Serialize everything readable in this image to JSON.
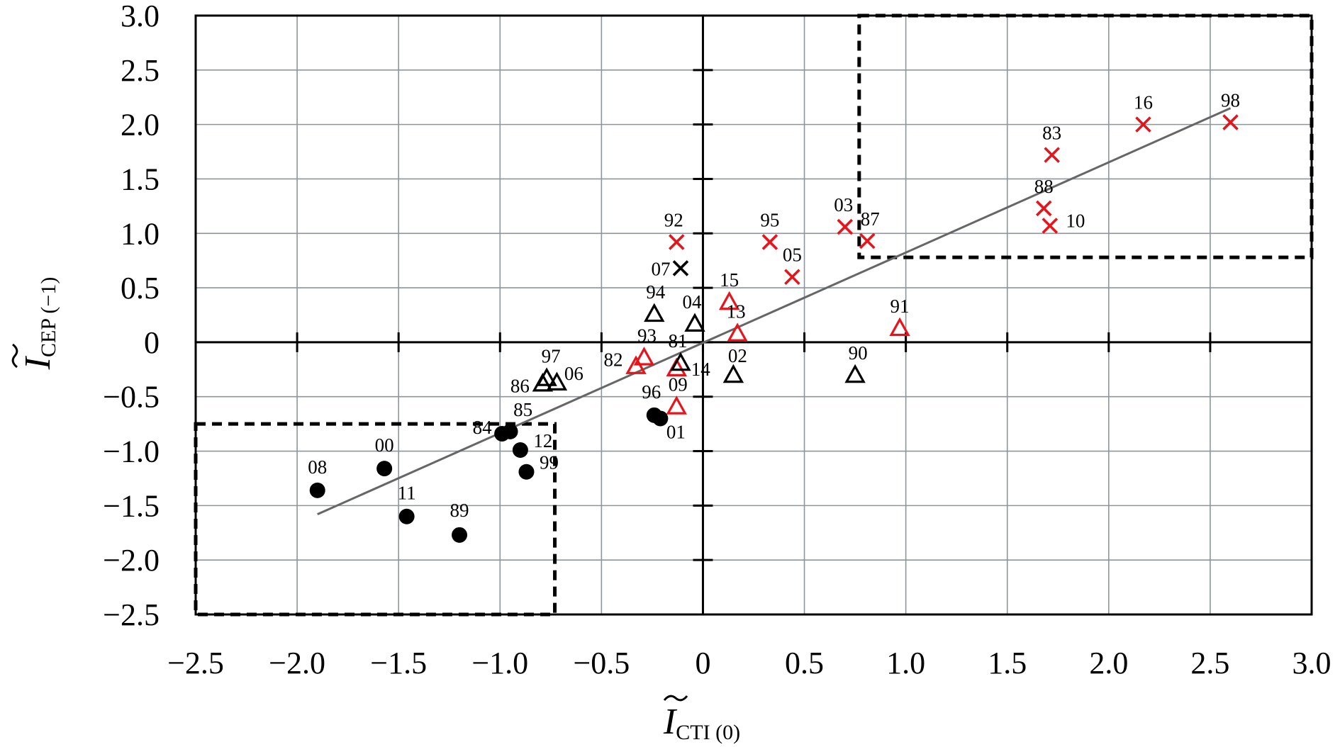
{
  "chart_data": {
    "type": "scatter",
    "xlabel": {
      "symbol": "I",
      "subscript": "CTI (0)"
    },
    "ylabel": {
      "symbol": "I",
      "subscript": "CEP (−1)"
    },
    "xlim": [
      -2.5,
      3.0
    ],
    "ylim": [
      -2.5,
      3.0
    ],
    "xticks": [
      "−2.5",
      "−2.0",
      "−1.5",
      "−1.0",
      "−0.5",
      "0",
      "0.5",
      "1.0",
      "1.5",
      "2.0",
      "2.5",
      "3.0"
    ],
    "yticks": [
      "3.0",
      "2.5",
      "2.0",
      "1.5",
      "1.0",
      "0.5",
      "0",
      "−0.5",
      "−1.0",
      "−1.5",
      "−2.0",
      "−2.5"
    ],
    "grid": true,
    "colors": {
      "red": "#e8141b",
      "black": "#000000",
      "grid": "#8c969c",
      "trend": "#666666"
    },
    "trendline": {
      "x": [
        -1.9,
        2.6
      ],
      "y": [
        -1.58,
        2.15
      ]
    },
    "regions": [
      {
        "x": [
          0.77,
          3.0
        ],
        "y": [
          0.78,
          3.0
        ],
        "style": "dashed"
      },
      {
        "x": [
          -2.5,
          -0.73
        ],
        "y": [
          -2.5,
          -0.75
        ],
        "style": "dashed"
      }
    ],
    "points": [
      {
        "label": "98",
        "x": 2.6,
        "y": 2.02,
        "marker": "x",
        "color": "red"
      },
      {
        "label": "16",
        "x": 2.17,
        "y": 2.0,
        "marker": "x",
        "color": "red"
      },
      {
        "label": "83",
        "x": 1.72,
        "y": 1.72,
        "marker": "x",
        "color": "red"
      },
      {
        "label": "88",
        "x": 1.68,
        "y": 1.23,
        "marker": "x",
        "color": "red"
      },
      {
        "label": "10",
        "x": 1.71,
        "y": 1.07,
        "marker": "x",
        "color": "red"
      },
      {
        "label": "03",
        "x": 0.7,
        "y": 1.06,
        "marker": "x",
        "color": "red"
      },
      {
        "label": "87",
        "x": 0.81,
        "y": 0.93,
        "marker": "x",
        "color": "red"
      },
      {
        "label": "95",
        "x": 0.33,
        "y": 0.92,
        "marker": "x",
        "color": "red"
      },
      {
        "label": "05",
        "x": 0.44,
        "y": 0.6,
        "marker": "x",
        "color": "red"
      },
      {
        "label": "92",
        "x": -0.13,
        "y": 0.92,
        "marker": "x",
        "color": "red"
      },
      {
        "label": "07",
        "x": -0.11,
        "y": 0.68,
        "marker": "x",
        "color": "black"
      },
      {
        "label": "15",
        "x": 0.13,
        "y": 0.37,
        "marker": "triangle",
        "color": "red"
      },
      {
        "label": "13",
        "x": 0.17,
        "y": 0.08,
        "marker": "triangle",
        "color": "red"
      },
      {
        "label": "91",
        "x": 0.97,
        "y": 0.13,
        "marker": "triangle",
        "color": "red"
      },
      {
        "label": "93",
        "x": -0.29,
        "y": -0.14,
        "marker": "triangle",
        "color": "red"
      },
      {
        "label": "82",
        "x": -0.33,
        "y": -0.22,
        "marker": "triangle",
        "color": "red"
      },
      {
        "label": "14",
        "x": -0.13,
        "y": -0.24,
        "marker": "triangle",
        "color": "red"
      },
      {
        "label": "09",
        "x": -0.13,
        "y": -0.59,
        "marker": "triangle",
        "color": "red"
      },
      {
        "label": "94",
        "x": -0.24,
        "y": 0.26,
        "marker": "triangle",
        "color": "black"
      },
      {
        "label": "04",
        "x": -0.04,
        "y": 0.17,
        "marker": "triangle",
        "color": "black"
      },
      {
        "label": "81",
        "x": -0.11,
        "y": -0.19,
        "marker": "triangle",
        "color": "black"
      },
      {
        "label": "02",
        "x": 0.15,
        "y": -0.3,
        "marker": "triangle",
        "color": "black"
      },
      {
        "label": "90",
        "x": 0.75,
        "y": -0.3,
        "marker": "triangle",
        "color": "black"
      },
      {
        "label": "97",
        "x": -0.77,
        "y": -0.33,
        "marker": "triangle",
        "color": "black"
      },
      {
        "label": "86",
        "x": -0.79,
        "y": -0.38,
        "marker": "triangle",
        "color": "black"
      },
      {
        "label": "06",
        "x": -0.72,
        "y": -0.37,
        "marker": "triangle",
        "color": "black"
      },
      {
        "label": "96",
        "x": -0.24,
        "y": -0.67,
        "marker": "circle",
        "color": "black"
      },
      {
        "label": "01",
        "x": -0.21,
        "y": -0.7,
        "marker": "circle",
        "color": "black"
      },
      {
        "label": "85",
        "x": -0.95,
        "y": -0.82,
        "marker": "circle",
        "color": "black"
      },
      {
        "label": "84",
        "x": -0.99,
        "y": -0.84,
        "marker": "circle",
        "color": "black"
      },
      {
        "label": "12",
        "x": -0.9,
        "y": -0.99,
        "marker": "circle",
        "color": "black"
      },
      {
        "label": "99",
        "x": -0.87,
        "y": -1.19,
        "marker": "circle",
        "color": "black"
      },
      {
        "label": "00",
        "x": -1.57,
        "y": -1.16,
        "marker": "circle",
        "color": "black"
      },
      {
        "label": "08",
        "x": -1.9,
        "y": -1.36,
        "marker": "circle",
        "color": "black"
      },
      {
        "label": "11",
        "x": -1.46,
        "y": -1.6,
        "marker": "circle",
        "color": "black"
      },
      {
        "label": "89",
        "x": -1.2,
        "y": -1.77,
        "marker": "circle",
        "color": "black"
      }
    ]
  }
}
